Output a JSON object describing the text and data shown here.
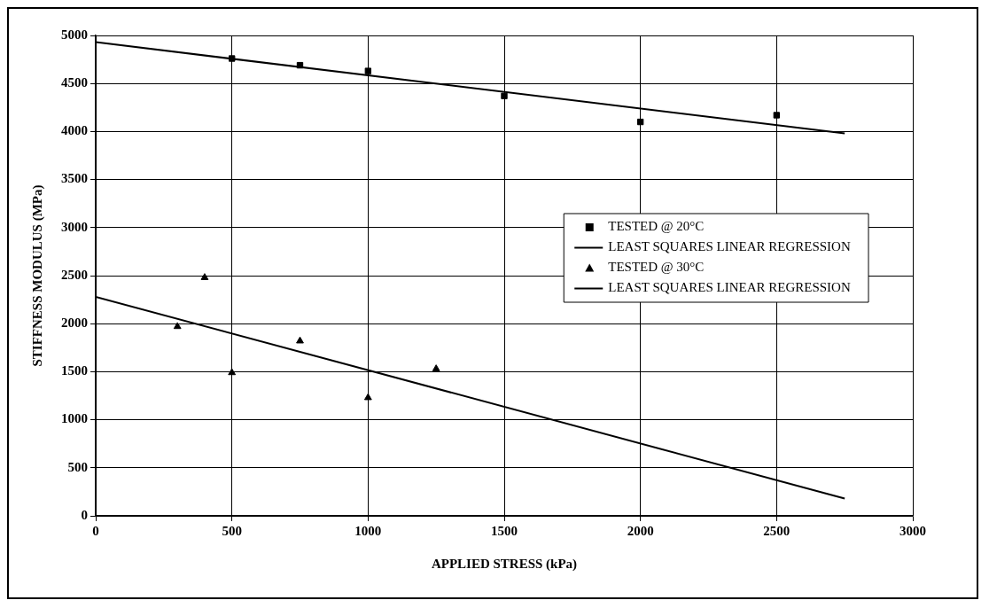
{
  "chart_data": {
    "type": "scatter",
    "xlabel": "APPLIED STRESS (kPa)",
    "ylabel": "STIFFNESS MODULUS (MPa)",
    "xlim": [
      0,
      3000
    ],
    "xticks": [
      0,
      500,
      1000,
      1500,
      2000,
      2500,
      3000
    ],
    "ylim": [
      0,
      5000
    ],
    "yticks": [
      0,
      500,
      1000,
      1500,
      2000,
      2500,
      3000,
      3500,
      4000,
      4500,
      5000
    ],
    "grid": true,
    "legend": "right",
    "series": [
      {
        "name": "TESTED @ 20°C",
        "type": "scatter",
        "marker": "square",
        "color": "#000000",
        "x": [
          500,
          750,
          1000,
          1500,
          2000,
          2500
        ],
        "values": [
          4760,
          4690,
          4630,
          4370,
          4100,
          4170
        ]
      },
      {
        "name": "LEAST SQUARES LINEAR REGRESSION",
        "type": "line",
        "marker": "none",
        "line_style": "solid",
        "color": "#000000",
        "x": [
          0,
          2750
        ],
        "values": [
          4930,
          3980
        ]
      },
      {
        "name": "TESTED @ 30°C",
        "type": "scatter",
        "marker": "triangle",
        "color": "#000000",
        "x": [
          300,
          400,
          500,
          750,
          1000,
          1250
        ],
        "values": [
          1970,
          2480,
          1490,
          1820,
          1230,
          1530
        ]
      },
      {
        "name": "LEAST SQUARES LINEAR REGRESSION",
        "type": "line",
        "marker": "none",
        "line_style": "solid",
        "color": "#000000",
        "x": [
          0,
          2750
        ],
        "values": [
          2280,
          180
        ]
      }
    ]
  }
}
